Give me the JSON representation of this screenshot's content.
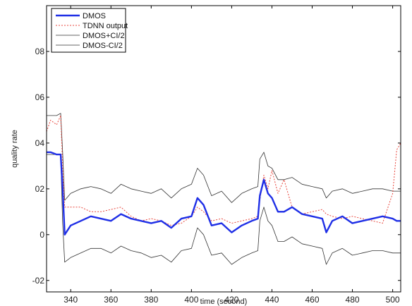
{
  "chart_data": {
    "type": "line",
    "xlabel": "time (second)",
    "ylabel": "quality rate",
    "xlim": [
      328,
      504
    ],
    "ylim": [
      -0.25,
      1.0
    ],
    "x_ticks": [
      340,
      360,
      380,
      400,
      420,
      440,
      460,
      480,
      500
    ],
    "y_ticks": [
      -0.2,
      0,
      0.2,
      0.4,
      0.6,
      0.8
    ],
    "y_tick_labels": [
      "-02",
      "0",
      "02",
      "04",
      "06",
      "08"
    ],
    "grid": false,
    "legend_position": "top-left",
    "colors": {
      "dmos": "#1f2fe6",
      "tdnn": "#e8463c",
      "ci_plus": "#333333",
      "ci_minus": "#333333",
      "axis": "#000000"
    },
    "x": [
      328,
      330,
      333,
      335,
      336,
      337,
      340,
      345,
      350,
      355,
      360,
      365,
      370,
      375,
      380,
      385,
      390,
      395,
      400,
      403,
      406,
      410,
      415,
      420,
      425,
      430,
      433,
      434,
      436,
      438,
      440,
      443,
      446,
      450,
      455,
      460,
      465,
      467,
      470,
      475,
      480,
      485,
      490,
      495,
      500,
      502,
      504
    ],
    "series": [
      {
        "name": "DMOS",
        "key": "dmos",
        "values": [
          0.36,
          0.36,
          0.35,
          0.35,
          0.2,
          0.0,
          0.04,
          0.06,
          0.08,
          0.07,
          0.06,
          0.09,
          0.07,
          0.06,
          0.05,
          0.06,
          0.03,
          0.07,
          0.08,
          0.16,
          0.13,
          0.04,
          0.05,
          0.01,
          0.04,
          0.06,
          0.07,
          0.17,
          0.24,
          0.18,
          0.16,
          0.1,
          0.1,
          0.12,
          0.09,
          0.08,
          0.07,
          0.01,
          0.06,
          0.08,
          0.05,
          0.06,
          0.07,
          0.08,
          0.07,
          0.06,
          0.06
        ]
      },
      {
        "name": "TDNN output",
        "key": "tdnn",
        "values": [
          0.45,
          0.5,
          0.48,
          0.52,
          0.3,
          0.12,
          0.12,
          0.12,
          0.1,
          0.1,
          0.11,
          0.12,
          0.08,
          0.06,
          0.07,
          0.06,
          0.04,
          0.05,
          0.08,
          0.12,
          0.1,
          0.06,
          0.07,
          0.05,
          0.06,
          0.07,
          0.08,
          0.15,
          0.26,
          0.2,
          0.28,
          0.18,
          0.24,
          0.12,
          0.09,
          0.1,
          0.11,
          0.09,
          0.08,
          0.07,
          0.08,
          0.07,
          0.06,
          0.05,
          0.18,
          0.37,
          0.4
        ]
      },
      {
        "name": "DMOS+CI/2",
        "key": "ci_plus",
        "values": [
          0.52,
          0.52,
          0.52,
          0.53,
          0.36,
          0.15,
          0.18,
          0.2,
          0.21,
          0.2,
          0.18,
          0.22,
          0.2,
          0.19,
          0.18,
          0.2,
          0.16,
          0.2,
          0.22,
          0.29,
          0.26,
          0.17,
          0.19,
          0.14,
          0.18,
          0.2,
          0.21,
          0.33,
          0.36,
          0.3,
          0.29,
          0.24,
          0.24,
          0.25,
          0.22,
          0.21,
          0.2,
          0.16,
          0.19,
          0.2,
          0.18,
          0.19,
          0.2,
          0.2,
          0.19,
          0.19,
          0.19
        ]
      },
      {
        "name": "DMOS-CI/2",
        "key": "ci_minus",
        "values": [
          0.35,
          0.35,
          0.35,
          0.35,
          0.05,
          -0.12,
          -0.1,
          -0.08,
          -0.06,
          -0.06,
          -0.08,
          -0.05,
          -0.07,
          -0.08,
          -0.1,
          -0.09,
          -0.12,
          -0.07,
          -0.06,
          0.03,
          0.0,
          -0.09,
          -0.08,
          -0.13,
          -0.1,
          -0.08,
          -0.07,
          0.06,
          0.12,
          0.06,
          0.04,
          -0.03,
          -0.03,
          -0.01,
          -0.04,
          -0.05,
          -0.06,
          -0.13,
          -0.08,
          -0.06,
          -0.09,
          -0.08,
          -0.07,
          -0.07,
          -0.08,
          -0.08,
          -0.08
        ]
      }
    ]
  }
}
